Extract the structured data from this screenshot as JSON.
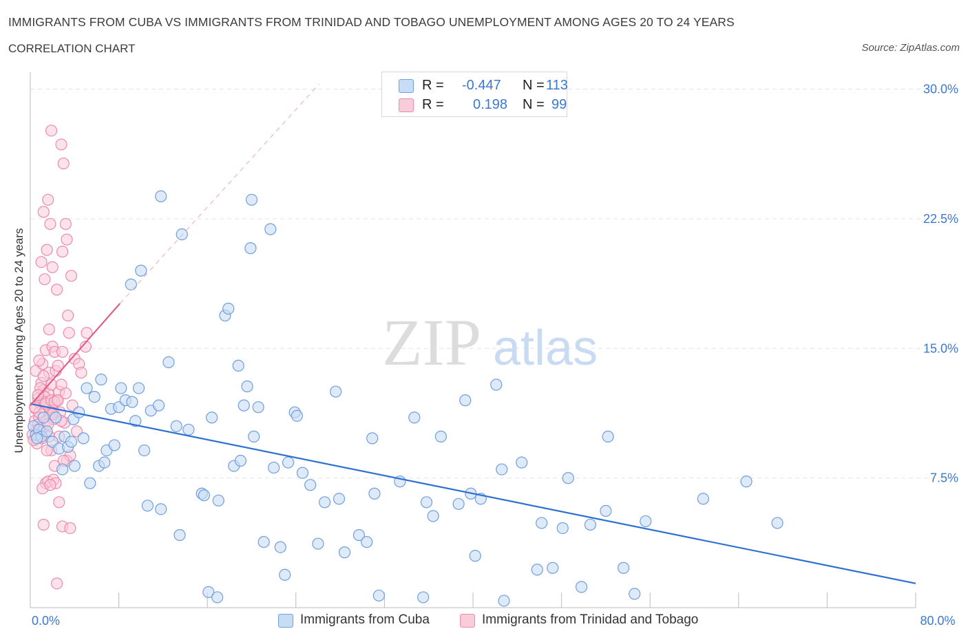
{
  "header": {
    "title": "IMMIGRANTS FROM CUBA VS IMMIGRANTS FROM TRINIDAD AND TOBAGO UNEMPLOYMENT AMONG AGES 20 TO 24 YEARS",
    "subtitle": "CORRELATION CHART",
    "source": "Source: ZipAtlas.com"
  },
  "watermark": {
    "zip": "ZIP",
    "atlas": "atlas"
  },
  "legend": {
    "rows": [
      {
        "r_label": "R =",
        "r_value": "-0.447",
        "n_label": "N =",
        "n_value": "113"
      },
      {
        "r_label": "R =",
        "r_value": "0.198",
        "n_label": "N =",
        "n_value": "99"
      }
    ]
  },
  "bottom_legend": {
    "items": [
      {
        "label": "Immigrants from Cuba"
      },
      {
        "label": "Immigrants from Trinidad and Tobago"
      }
    ]
  },
  "colors": {
    "cuba_fill": "#c9dcf5",
    "cuba_stroke": "#6e9ee0",
    "cuba_line": "#2d6fd2",
    "tt_fill": "#f9ccda",
    "tt_stroke": "#ec8aaa",
    "tt_line": "#e0608a",
    "tick_text": "#3b78d0",
    "grid": "#e2e2e2"
  },
  "chart_data": {
    "type": "scatter",
    "ylabel": "Unemployment Among Ages 20 to 24 years",
    "xlim": [
      0,
      80
    ],
    "ylim": [
      0,
      30.5
    ],
    "x_tick_labels": [
      {
        "value": 0,
        "label": "0.0%"
      },
      {
        "value": 80,
        "label": "80.0%"
      }
    ],
    "y_tick_labels": [
      {
        "value": 7.5,
        "label": "7.5%"
      },
      {
        "value": 15,
        "label": "15.0%"
      },
      {
        "value": 22.5,
        "label": "22.5%"
      },
      {
        "value": 30,
        "label": "30.0%"
      }
    ],
    "x_minor_ticks": [
      8,
      16,
      24,
      32,
      40,
      48,
      56,
      64,
      72,
      80
    ],
    "grid": true,
    "series": [
      {
        "name": "Immigrants from Cuba",
        "points": [
          [
            0.3,
            10.5
          ],
          [
            0.5,
            10.0
          ],
          [
            0.8,
            10.3
          ],
          [
            1.0,
            9.9
          ],
          [
            1.2,
            11.0
          ],
          [
            1.5,
            10.2
          ],
          [
            0.6,
            9.8
          ],
          [
            2.0,
            9.6
          ],
          [
            2.3,
            11.0
          ],
          [
            2.6,
            9.2
          ],
          [
            2.9,
            8.0
          ],
          [
            3.1,
            9.9
          ],
          [
            3.4,
            9.3
          ],
          [
            3.7,
            9.6
          ],
          [
            4.0,
            8.2
          ],
          [
            3.9,
            10.9
          ],
          [
            4.4,
            11.3
          ],
          [
            4.8,
            9.8
          ],
          [
            5.1,
            12.7
          ],
          [
            5.4,
            7.2
          ],
          [
            5.8,
            12.2
          ],
          [
            6.2,
            8.2
          ],
          [
            6.4,
            13.2
          ],
          [
            6.7,
            8.4
          ],
          [
            6.9,
            9.1
          ],
          [
            7.3,
            11.5
          ],
          [
            7.6,
            9.4
          ],
          [
            8.0,
            11.6
          ],
          [
            8.2,
            12.7
          ],
          [
            8.6,
            12.0
          ],
          [
            9.2,
            11.9
          ],
          [
            9.5,
            10.8
          ],
          [
            9.8,
            12.7
          ],
          [
            10.0,
            19.5
          ],
          [
            10.3,
            9.1
          ],
          [
            10.6,
            5.9
          ],
          [
            10.9,
            11.4
          ],
          [
            11.6,
            11.7
          ],
          [
            11.8,
            5.7
          ],
          [
            12.5,
            14.2
          ],
          [
            13.2,
            10.5
          ],
          [
            13.5,
            4.2
          ],
          [
            13.7,
            21.6
          ],
          [
            14.3,
            10.3
          ],
          [
            15.5,
            6.6
          ],
          [
            15.7,
            6.5
          ],
          [
            16.1,
            0.9
          ],
          [
            16.4,
            11.0
          ],
          [
            17.0,
            6.2
          ],
          [
            16.9,
            0.6
          ],
          [
            17.6,
            16.9
          ],
          [
            17.9,
            17.3
          ],
          [
            18.4,
            8.2
          ],
          [
            18.8,
            14.0
          ],
          [
            19.0,
            8.5
          ],
          [
            19.3,
            11.7
          ],
          [
            19.6,
            12.8
          ],
          [
            19.9,
            20.8
          ],
          [
            20.0,
            23.6
          ],
          [
            20.2,
            9.9
          ],
          [
            20.6,
            11.6
          ],
          [
            21.1,
            3.8
          ],
          [
            21.7,
            21.9
          ],
          [
            22.0,
            8.1
          ],
          [
            22.6,
            3.5
          ],
          [
            23.0,
            1.9
          ],
          [
            23.3,
            8.4
          ],
          [
            23.9,
            11.3
          ],
          [
            24.1,
            11.1
          ],
          [
            24.6,
            7.8
          ],
          [
            25.3,
            7.1
          ],
          [
            26.0,
            3.7
          ],
          [
            26.6,
            6.1
          ],
          [
            27.6,
            12.5
          ],
          [
            27.9,
            6.3
          ],
          [
            28.4,
            3.2
          ],
          [
            29.7,
            4.2
          ],
          [
            30.4,
            3.8
          ],
          [
            30.9,
            9.8
          ],
          [
            31.1,
            6.6
          ],
          [
            31.5,
            0.7
          ],
          [
            33.4,
            7.3
          ],
          [
            34.7,
            11.0
          ],
          [
            35.5,
            0.6
          ],
          [
            35.8,
            6.1
          ],
          [
            36.4,
            5.3
          ],
          [
            37.1,
            9.9
          ],
          [
            38.7,
            6.0
          ],
          [
            39.3,
            12.0
          ],
          [
            39.8,
            6.6
          ],
          [
            40.2,
            3.0
          ],
          [
            40.7,
            6.3
          ],
          [
            42.1,
            12.9
          ],
          [
            42.6,
            8.0
          ],
          [
            42.8,
            0.4
          ],
          [
            44.4,
            8.4
          ],
          [
            46.2,
            4.9
          ],
          [
            45.8,
            2.2
          ],
          [
            47.2,
            2.3
          ],
          [
            48.1,
            4.6
          ],
          [
            48.6,
            7.5
          ],
          [
            49.8,
            1.2
          ],
          [
            50.6,
            4.8
          ],
          [
            52.2,
            9.9
          ],
          [
            52.0,
            5.6
          ],
          [
            53.6,
            2.3
          ],
          [
            55.6,
            5.0
          ],
          [
            54.6,
            0.8
          ],
          [
            60.8,
            6.3
          ],
          [
            64.7,
            7.3
          ],
          [
            67.5,
            4.9
          ],
          [
            11.8,
            23.8
          ],
          [
            9.1,
            18.7
          ]
        ]
      },
      {
        "name": "Immigrants from Trinidad and Tobago",
        "points": [
          [
            0.2,
            10.0
          ],
          [
            0.4,
            10.8
          ],
          [
            0.5,
            11.5
          ],
          [
            0.6,
            9.5
          ],
          [
            0.7,
            12.1
          ],
          [
            0.8,
            11.0
          ],
          [
            0.9,
            10.4
          ],
          [
            1.0,
            13.0
          ],
          [
            1.1,
            11.9
          ],
          [
            1.2,
            12.6
          ],
          [
            1.3,
            10.1
          ],
          [
            1.4,
            14.9
          ],
          [
            1.5,
            11.7
          ],
          [
            1.6,
            12.4
          ],
          [
            1.7,
            13.6
          ],
          [
            1.8,
            11.1
          ],
          [
            1.9,
            12.9
          ],
          [
            2.0,
            15.1
          ],
          [
            2.1,
            11.4
          ],
          [
            2.2,
            14.8
          ],
          [
            0.3,
            9.7
          ],
          [
            0.5,
            13.7
          ],
          [
            0.7,
            10.6
          ],
          [
            0.9,
            11.8
          ],
          [
            1.1,
            14.1
          ],
          [
            1.3,
            12.2
          ],
          [
            1.5,
            10.8
          ],
          [
            1.7,
            11.6
          ],
          [
            1.9,
            9.1
          ],
          [
            2.1,
            10.9
          ],
          [
            1.0,
            20.0
          ],
          [
            1.2,
            22.9
          ],
          [
            1.3,
            19.0
          ],
          [
            1.5,
            20.7
          ],
          [
            1.6,
            23.6
          ],
          [
            1.7,
            16.1
          ],
          [
            1.8,
            22.2
          ],
          [
            2.0,
            19.7
          ],
          [
            1.9,
            27.6
          ],
          [
            2.8,
            26.8
          ],
          [
            2.4,
            18.4
          ],
          [
            2.9,
            20.6
          ],
          [
            3.0,
            25.7
          ],
          [
            3.2,
            22.2
          ],
          [
            3.3,
            21.3
          ],
          [
            3.4,
            16.9
          ],
          [
            3.5,
            15.9
          ],
          [
            3.7,
            19.2
          ],
          [
            3.8,
            11.7
          ],
          [
            4.0,
            14.4
          ],
          [
            2.3,
            13.7
          ],
          [
            2.4,
            12.0
          ],
          [
            2.5,
            14.0
          ],
          [
            2.6,
            12.5
          ],
          [
            2.7,
            11.3
          ],
          [
            2.8,
            12.9
          ],
          [
            2.9,
            14.8
          ],
          [
            3.1,
            10.7
          ],
          [
            3.3,
            8.5
          ],
          [
            3.6,
            8.8
          ],
          [
            1.2,
            4.8
          ],
          [
            1.4,
            7.2
          ],
          [
            1.6,
            7.3
          ],
          [
            2.1,
            7.4
          ],
          [
            2.3,
            7.2
          ],
          [
            2.6,
            6.1
          ],
          [
            2.9,
            4.7
          ],
          [
            3.0,
            8.5
          ],
          [
            3.6,
            4.6
          ],
          [
            2.4,
            1.4
          ],
          [
            1.1,
            6.9
          ],
          [
            1.5,
            9.1
          ],
          [
            1.8,
            7.1
          ],
          [
            2.2,
            8.2
          ],
          [
            2.6,
            9.9
          ],
          [
            0.6,
            10.3
          ],
          [
            0.8,
            11.3
          ],
          [
            0.9,
            12.7
          ],
          [
            1.2,
            13.4
          ],
          [
            1.3,
            11.9
          ],
          [
            0.4,
            11.6
          ],
          [
            0.7,
            12.3
          ],
          [
            1.0,
            10.2
          ],
          [
            1.4,
            11.8
          ],
          [
            1.6,
            10.6
          ],
          [
            1.9,
            12.0
          ],
          [
            2.2,
            11.9
          ],
          [
            2.5,
            12.0
          ],
          [
            2.8,
            10.8
          ],
          [
            3.2,
            12.4
          ],
          [
            4.4,
            14.1
          ],
          [
            4.6,
            13.6
          ],
          [
            5.0,
            15.1
          ],
          [
            5.1,
            15.9
          ],
          [
            4.2,
            10.2
          ],
          [
            1.1,
            9.8
          ],
          [
            0.8,
            14.3
          ],
          [
            1.7,
            9.9
          ],
          [
            2.0,
            11.2
          ]
        ]
      }
    ],
    "trend_lines": [
      {
        "series": "Immigrants from Cuba",
        "x0": 0,
        "y0": 11.8,
        "x1": 80,
        "y1": 1.4
      },
      {
        "series": "Immigrants from Trinidad and Tobago",
        "x0": 0,
        "y0": 11.7,
        "x1": 8.1,
        "y1": 17.6,
        "dashed_extension_to": [
          26.1,
          30.3
        ]
      }
    ]
  }
}
